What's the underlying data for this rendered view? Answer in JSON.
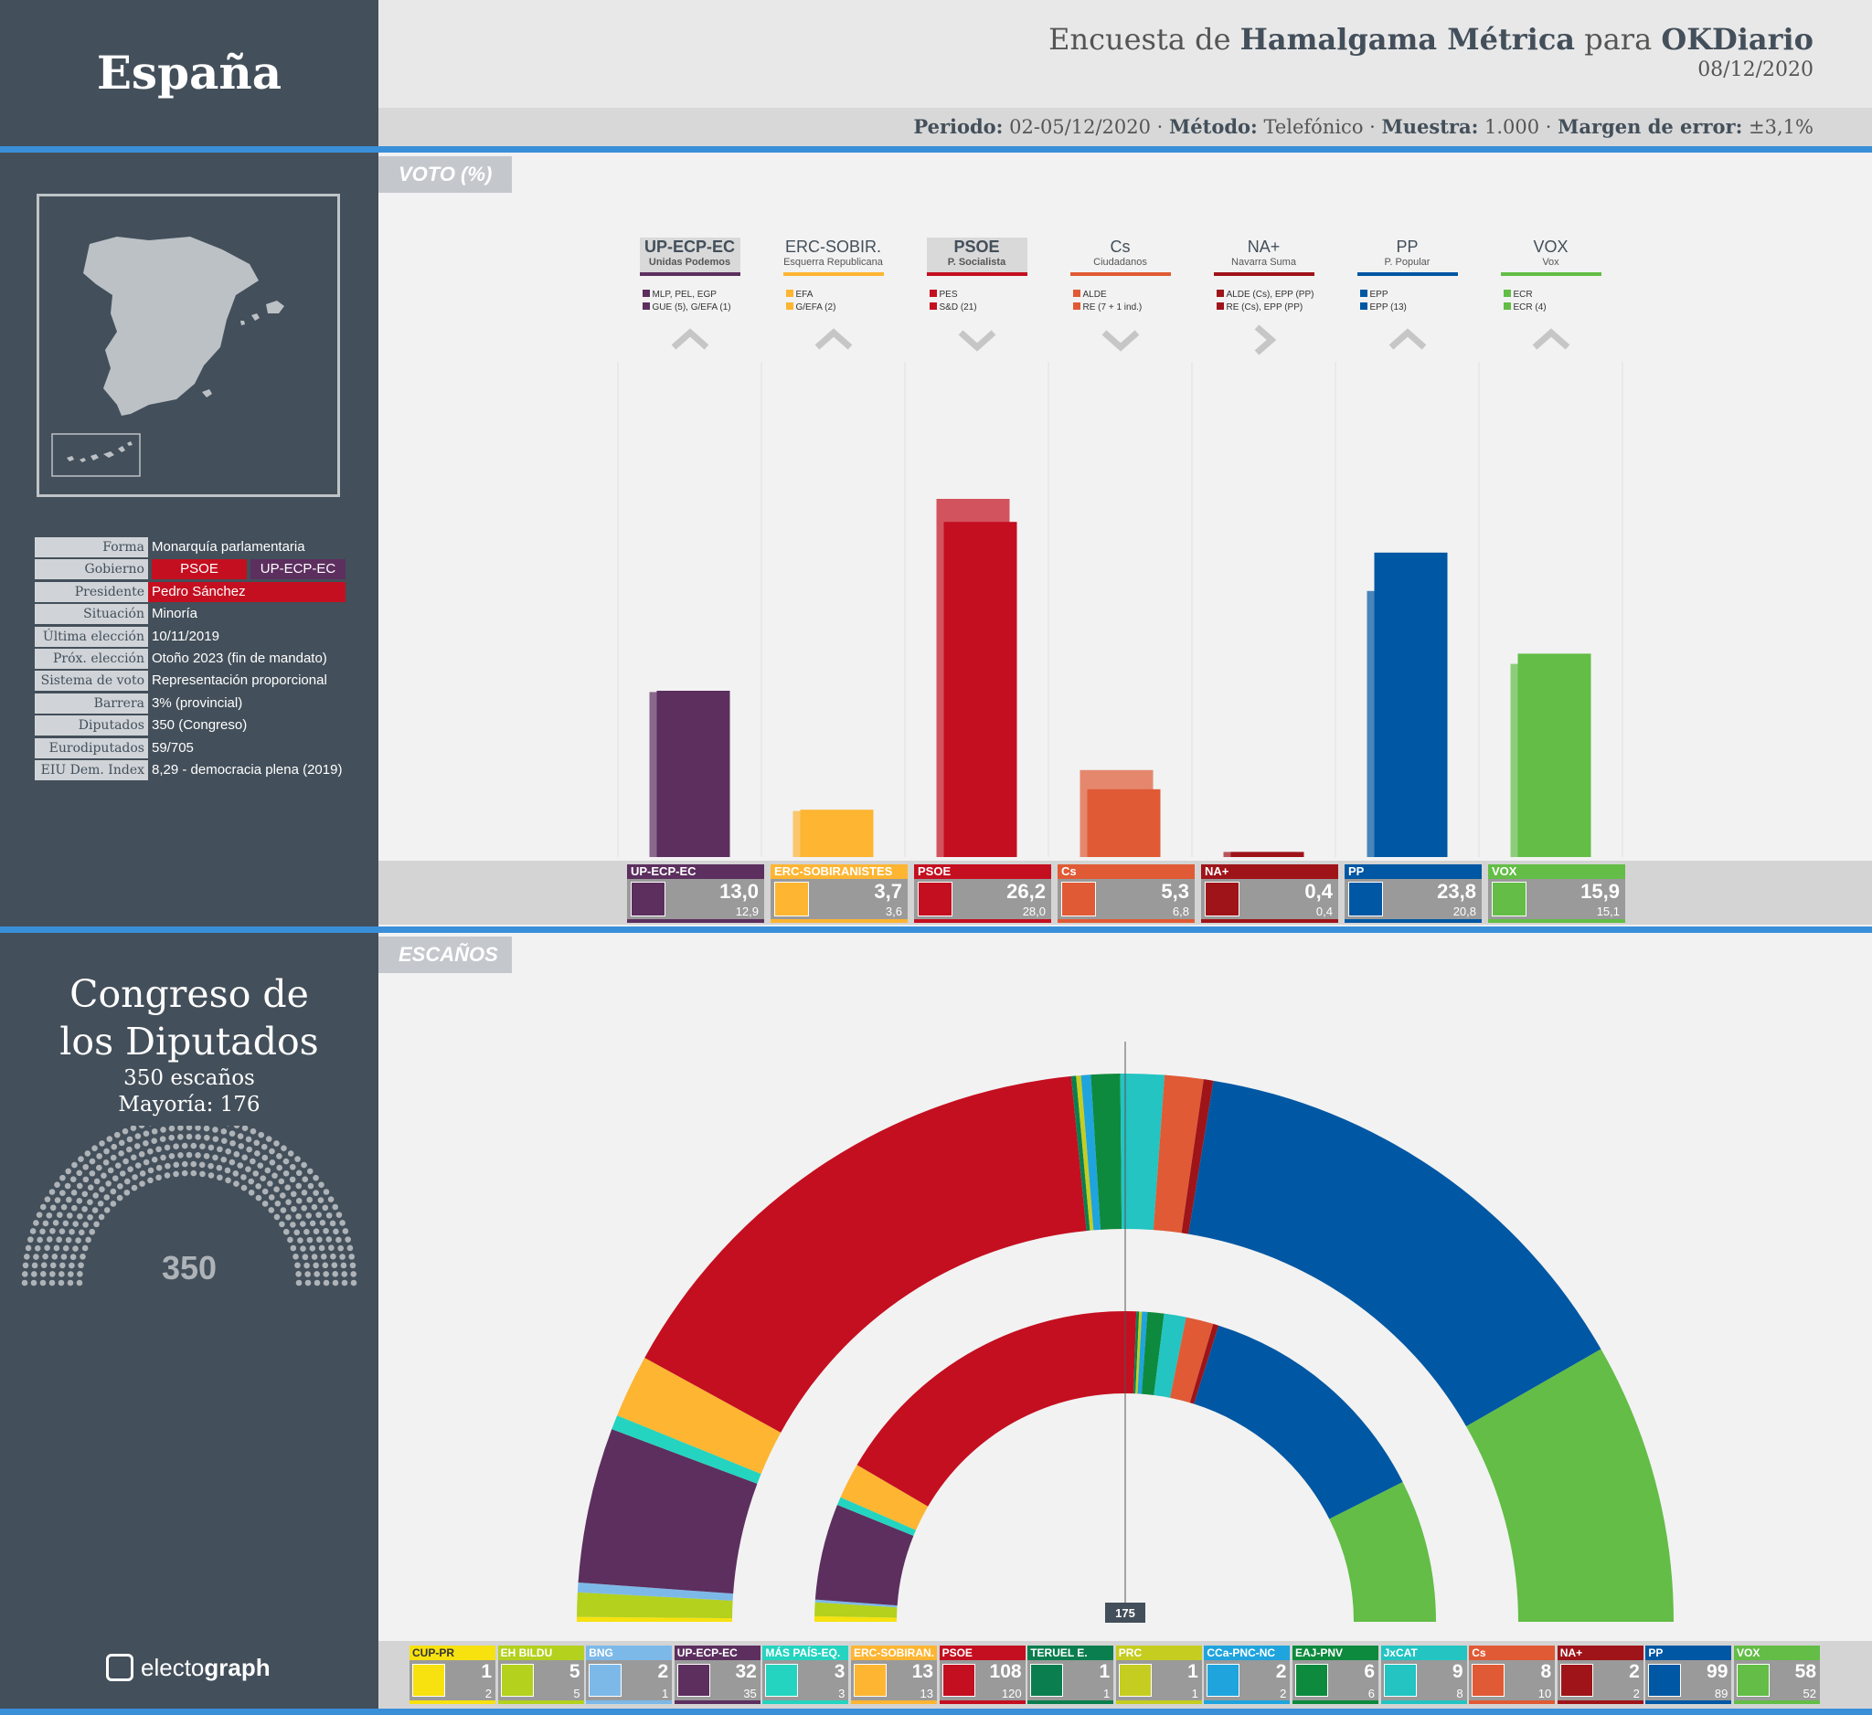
{
  "country": "España",
  "header": {
    "title_pre": "Encuesta de ",
    "pollster": "Hamalgama Métrica",
    "title_mid": " para ",
    "media": "OKDiario",
    "date": "08/12/2020",
    "meta": [
      {
        "k": "Periodo:",
        "v": " 02-05/12/2020 · "
      },
      {
        "k": "Método:",
        "v": " Telefónico · "
      },
      {
        "k": "Muestra:",
        "v": " 1.000 · "
      },
      {
        "k": "Margen de error:",
        "v": " ±3,1%"
      }
    ]
  },
  "sections": {
    "vote": "VOTO (%)",
    "seats": "ESCAÑOS"
  },
  "info": {
    "rows": [
      {
        "k": "Forma",
        "v": "Monarquía parlamentaria"
      },
      {
        "k": "Gobierno",
        "v": ""
      },
      {
        "k": "Presidente",
        "v": "Pedro Sánchez"
      },
      {
        "k": "Situación",
        "v": "Minoría"
      },
      {
        "k": "Última elección",
        "v": "10/11/2019"
      },
      {
        "k": "Próx. elección",
        "v": "Otoño 2023 (fin de mandato)"
      },
      {
        "k": "Sistema de voto",
        "v": "Representación proporcional"
      },
      {
        "k": "Barrera",
        "v": "3% (provincial)"
      },
      {
        "k": "Diputados",
        "v": "350 (Congreso)"
      },
      {
        "k": "Eurodiputados",
        "v": "59/705"
      },
      {
        "k": "EIU Dem. Index",
        "v": "8,29 - democracia plena (2019)"
      }
    ],
    "government": [
      "PSOE",
      "UP-ECP-EC"
    ]
  },
  "congress": {
    "title_1": "Congreso de",
    "title_2": "los Diputados",
    "seats": "350 escaños",
    "majority": "Mayoría: 176",
    "total": "350",
    "line_label": "175"
  },
  "brand": {
    "pre": "electo",
    "bold": "graph"
  },
  "colors": {
    "UP": "#5c2f5f",
    "ERC": "#fdb532",
    "PSOE": "#c40f20",
    "CS": "#e05a35",
    "NA": "#9e1419",
    "PP": "#0057a3",
    "VOX": "#63bd46",
    "CUP": "#f7e10f",
    "BILDU": "#b3d11d",
    "BNG": "#7db9e8",
    "MP": "#25d4c0",
    "TE": "#0b7e4f",
    "PRC": "#c5cd20",
    "CCA": "#1fa4de",
    "PNV": "#0e8a3e",
    "JXCAT": "#23c4c2"
  },
  "chart_data": [
    {
      "type": "bar",
      "title": "VOTO (%)",
      "categories": [
        "UP-ECP-EC",
        "ERC-SOBIR.",
        "PSOE",
        "Cs",
        "NA+",
        "PP",
        "VOX"
      ],
      "subtitles": [
        "Unidas Podemos",
        "Esquerra Republicana",
        "P. Socialista",
        "Ciudadanos",
        "Navarra Suma",
        "P. Popular",
        "Vox"
      ],
      "strip_labels": [
        "UP-ECP-EC",
        "ERC-SOBIRANISTES",
        "PSOE",
        "Cs",
        "NA+",
        "PP",
        "VOX"
      ],
      "series": [
        {
          "name": "",
          "values": [
            13.0,
            3.7,
            26.2,
            5.3,
            0.4,
            23.8,
            15.9
          ]
        },
        {
          "name": "",
          "values": [
            12.9,
            3.6,
            28.0,
            6.8,
            0.4,
            20.8,
            15.1
          ]
        }
      ],
      "value_labels": [
        "13,0",
        "3,7",
        "26,2",
        "5,3",
        "0,4",
        "23,8",
        "15,9"
      ],
      "prev_labels": [
        "12,9",
        "3,6",
        "28,0",
        "6,8",
        "0,4",
        "20,8",
        "15,1"
      ],
      "trend": [
        "up",
        "up",
        "down",
        "down",
        "right",
        "up",
        "up"
      ],
      "highlighted": [
        "UP-ECP-EC",
        "PSOE"
      ],
      "eu_groups": [
        [
          "MLP, PEL, EGP",
          "GUE (5), G/EFA (1)"
        ],
        [
          "EFA",
          "G/EFA (2)"
        ],
        [
          "PES",
          "S&D (21)"
        ],
        [
          "ALDE",
          "RE (7 + 1 ind.)"
        ],
        [
          "ALDE (Cs), EPP (PP)",
          "RE (Cs), EPP (PP)"
        ],
        [
          "EPP",
          "EPP (13)"
        ],
        [
          "ECR",
          "ECR (4)"
        ]
      ],
      "colors": [
        "#5c2f5f",
        "#fdb532",
        "#c40f20",
        "#e05a35",
        "#9e1419",
        "#0057a3",
        "#63bd46"
      ]
    },
    {
      "type": "parliament",
      "title": "ESCAÑOS",
      "total": 350,
      "majority": 176,
      "categories": [
        "CUP-PR",
        "EH BILDU",
        "BNG",
        "UP-ECP-EC",
        "MÁS PAÍS-EQ.",
        "ERC-SOBIRAN.",
        "PSOE",
        "TERUEL E.",
        "PRC",
        "CCa-PNC-NC",
        "EAJ-PNV",
        "JxCAT",
        "Cs",
        "NA+",
        "PP",
        "VOX"
      ],
      "series": [
        {
          "name": "",
          "values": [
            1,
            5,
            2,
            32,
            3,
            13,
            108,
            1,
            1,
            2,
            6,
            9,
            8,
            2,
            99,
            58
          ]
        },
        {
          "name": "",
          "values": [
            2,
            5,
            1,
            35,
            3,
            13,
            120,
            1,
            1,
            2,
            6,
            8,
            10,
            2,
            89,
            52
          ]
        }
      ],
      "colors": [
        "#f7e10f",
        "#b3d11d",
        "#7db9e8",
        "#5c2f5f",
        "#25d4c0",
        "#fdb532",
        "#c40f20",
        "#0b7e4f",
        "#c5cd20",
        "#1fa4de",
        "#0e8a3e",
        "#23c4c2",
        "#e05a35",
        "#9e1419",
        "#0057a3",
        "#63bd46"
      ]
    }
  ]
}
